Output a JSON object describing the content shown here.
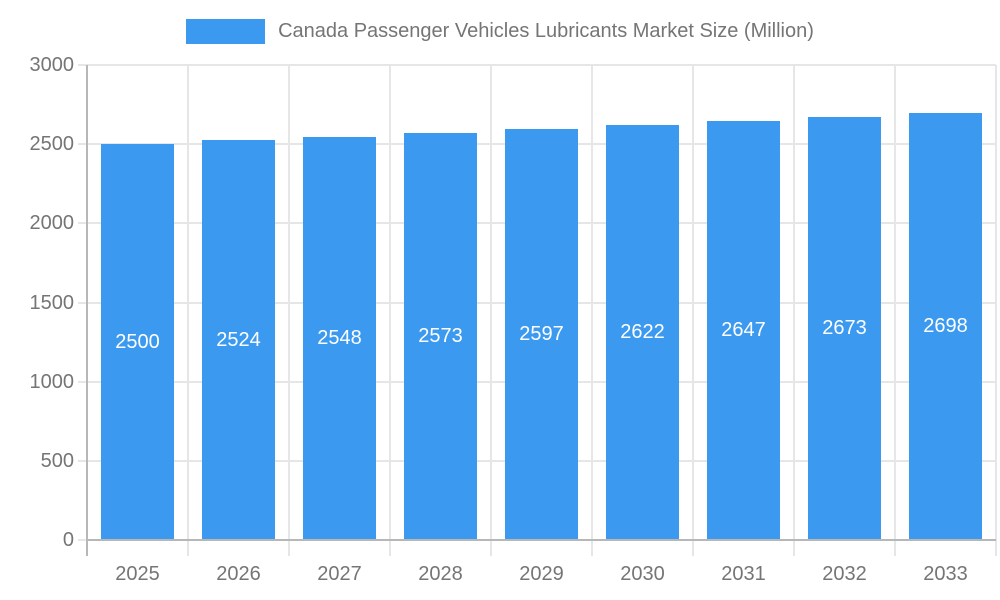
{
  "colors": {
    "bar": "#3B99F0",
    "title_text": "#757575",
    "axis_text": "#757575",
    "grid_line": "#E6E6E6",
    "axis_line": "#B7B7B7",
    "bar_label_text": "#FFFFFF",
    "background": "#FFFFFF"
  },
  "legend": {
    "swatch": "bar-color-swatch",
    "label": "Canada Passenger Vehicles Lubricants Market Size (Million)"
  },
  "chart_data": {
    "type": "bar",
    "title": "Canada Passenger Vehicles Lubricants Market Size (Million)",
    "categories": [
      "2025",
      "2026",
      "2027",
      "2028",
      "2029",
      "2030",
      "2031",
      "2032",
      "2033"
    ],
    "values": [
      2500,
      2524,
      2548,
      2573,
      2597,
      2622,
      2647,
      2673,
      2698
    ],
    "xlabel": "",
    "ylabel": "",
    "ylim": [
      0,
      3000
    ],
    "yticks": [
      0,
      500,
      1000,
      1500,
      2000,
      2500,
      3000
    ],
    "grid": true,
    "legend_position": "top",
    "bar_labels_inside": true
  }
}
